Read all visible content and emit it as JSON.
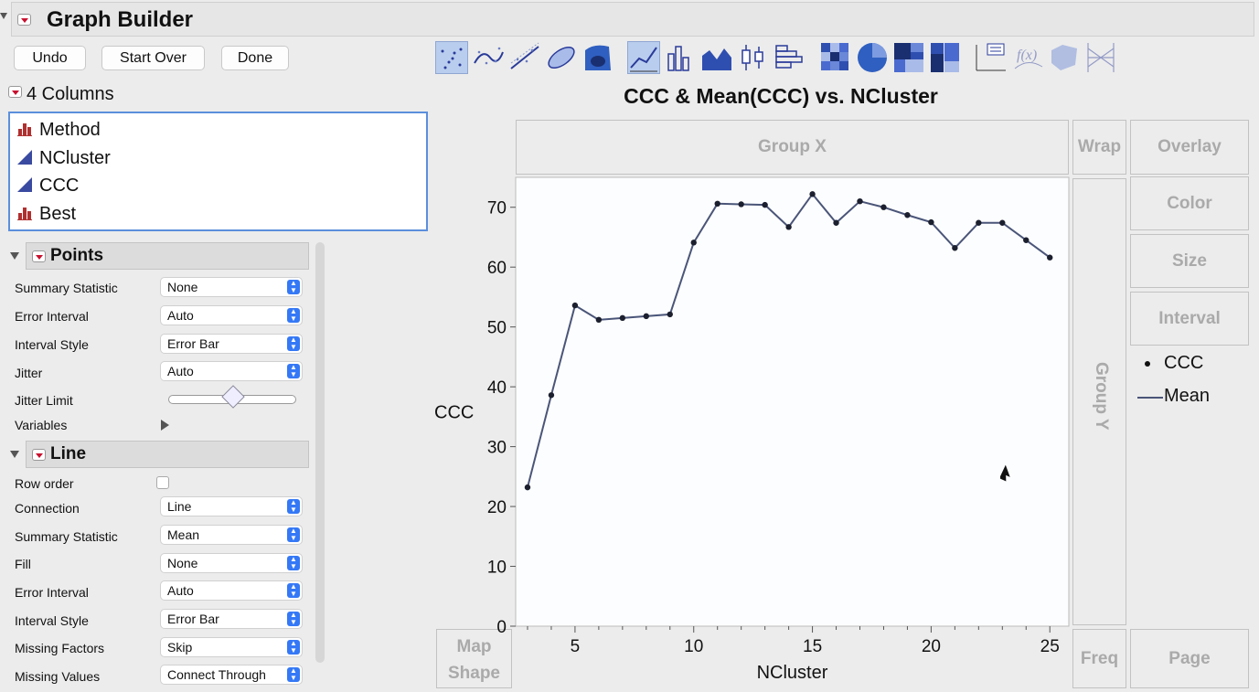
{
  "window": {
    "title": "Graph Builder"
  },
  "buttons": {
    "undo": "Undo",
    "start_over": "Start Over",
    "done": "Done"
  },
  "columns": {
    "header": "4 Columns",
    "items": [
      {
        "name": "Method",
        "icon": "nominal-bar-icon"
      },
      {
        "name": "NCluster",
        "icon": "continuous-triangle-icon"
      },
      {
        "name": "CCC",
        "icon": "continuous-triangle-icon"
      },
      {
        "name": "Best",
        "icon": "nominal-bar-icon"
      }
    ]
  },
  "points": {
    "header": "Points",
    "summary_statistic": {
      "label": "Summary Statistic",
      "value": "None"
    },
    "error_interval": {
      "label": "Error Interval",
      "value": "Auto"
    },
    "interval_style": {
      "label": "Interval Style",
      "value": "Error Bar"
    },
    "jitter": {
      "label": "Jitter",
      "value": "Auto"
    },
    "jitter_limit": {
      "label": "Jitter Limit",
      "level": 0.5
    },
    "variables": {
      "label": "Variables"
    }
  },
  "line": {
    "header": "Line",
    "row_order": {
      "label": "Row order",
      "checked": false
    },
    "connection": {
      "label": "Connection",
      "value": "Line"
    },
    "summary_statistic": {
      "label": "Summary Statistic",
      "value": "Mean"
    },
    "fill": {
      "label": "Fill",
      "value": "None"
    },
    "error_interval": {
      "label": "Error Interval",
      "value": "Auto"
    },
    "interval_style": {
      "label": "Interval Style",
      "value": "Error Bar"
    },
    "missing_factors": {
      "label": "Missing Factors",
      "value": "Skip"
    },
    "missing_values": {
      "label": "Missing Values",
      "value": "Connect Through"
    }
  },
  "zones": {
    "group_x": "Group X",
    "group_y": "Group Y",
    "wrap": "Wrap",
    "overlay": "Overlay",
    "color": "Color",
    "size": "Size",
    "interval": "Interval",
    "map_shape_1": "Map",
    "map_shape_2": "Shape",
    "freq": "Freq",
    "page": "Page"
  },
  "legend": {
    "points_label": "CCC",
    "line_label": "Mean"
  },
  "colors": {
    "series": "#4a5578",
    "accent_red": "#c8102e",
    "select_blue": "#3478f6"
  },
  "chart_data": {
    "type": "line",
    "title": "CCC & Mean(CCC) vs. NCluster",
    "xlabel": "NCluster",
    "ylabel": "CCC",
    "xlim": [
      2.5,
      25.8
    ],
    "ylim": [
      0,
      75
    ],
    "x_ticks": [
      5,
      10,
      15,
      20,
      25
    ],
    "y_ticks": [
      0,
      10,
      20,
      30,
      40,
      50,
      60,
      70
    ],
    "grid": false,
    "legend_position": "right",
    "series": [
      {
        "name": "Mean",
        "x": [
          3,
          4,
          5,
          6,
          7,
          8,
          9,
          10,
          11,
          12,
          13,
          14,
          15,
          16,
          17,
          18,
          19,
          20,
          21,
          22,
          23,
          24,
          25
        ],
        "y": [
          23.2,
          38.6,
          53.6,
          51.2,
          51.5,
          51.8,
          52.1,
          64.1,
          70.6,
          70.5,
          70.4,
          66.7,
          72.2,
          67.4,
          71.0,
          70.0,
          68.7,
          67.5,
          63.2,
          67.4,
          67.4,
          64.5,
          61.6
        ]
      }
    ]
  }
}
